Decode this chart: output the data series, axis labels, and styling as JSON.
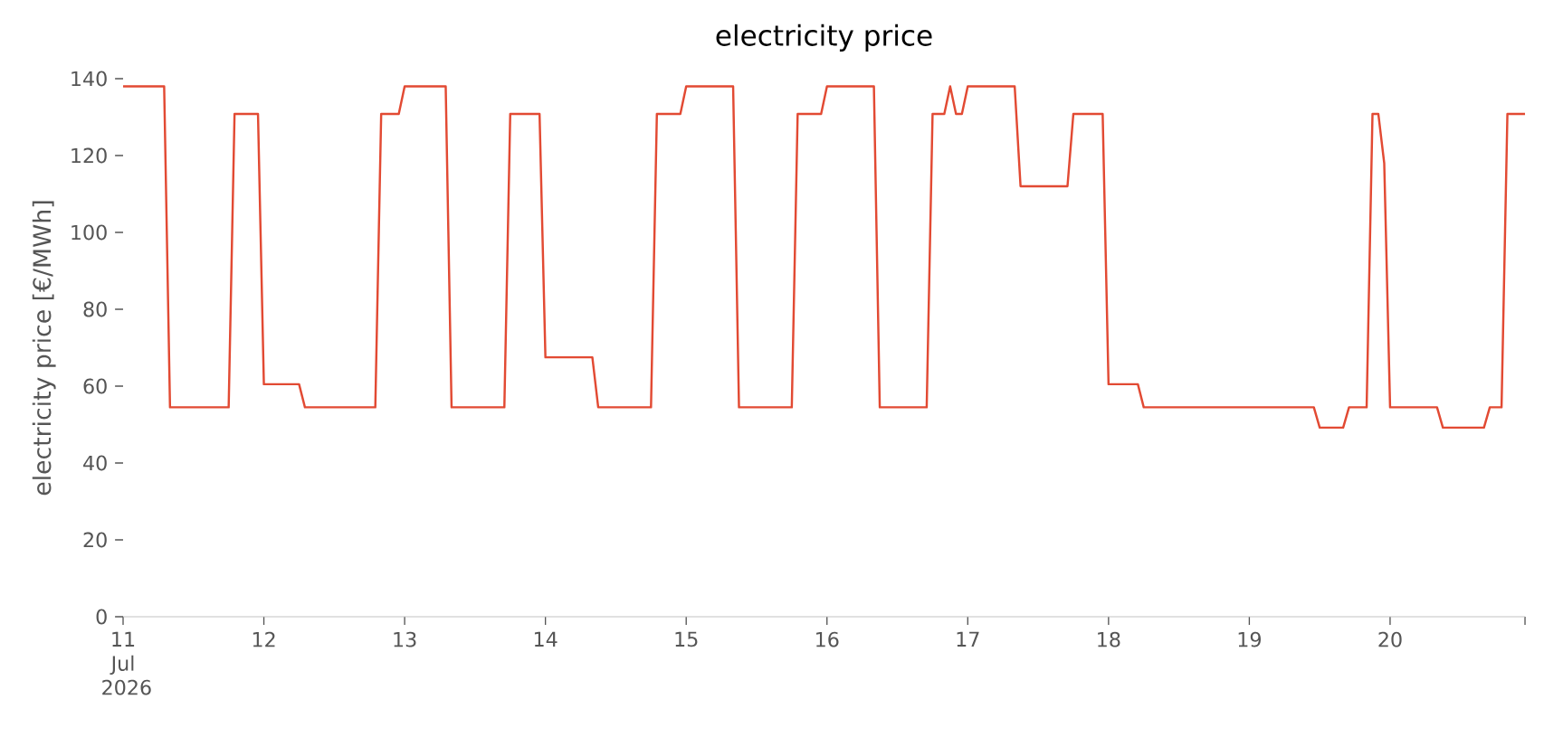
{
  "chart_data": {
    "type": "line",
    "title": "electricity price",
    "ylabel": "electricity price [€/MWh]",
    "x": [
      "2026-07-11T00:00",
      "2026-07-11T07:00",
      "2026-07-11T08:00",
      "2026-07-11T18:00",
      "2026-07-11T19:00",
      "2026-07-11T23:00",
      "2026-07-12T00:00",
      "2026-07-12T06:00",
      "2026-07-12T07:00",
      "2026-07-12T19:00",
      "2026-07-12T20:00",
      "2026-07-12T23:00",
      "2026-07-13T00:00",
      "2026-07-13T07:00",
      "2026-07-13T08:00",
      "2026-07-13T17:00",
      "2026-07-13T18:00",
      "2026-07-13T23:00",
      "2026-07-14T00:00",
      "2026-07-14T08:00",
      "2026-07-14T09:00",
      "2026-07-14T18:00",
      "2026-07-14T19:00",
      "2026-07-14T23:00",
      "2026-07-15T00:00",
      "2026-07-15T08:00",
      "2026-07-15T09:00",
      "2026-07-15T18:00",
      "2026-07-15T19:00",
      "2026-07-15T23:00",
      "2026-07-16T00:00",
      "2026-07-16T08:00",
      "2026-07-16T09:00",
      "2026-07-16T17:00",
      "2026-07-16T18:00",
      "2026-07-16T20:00",
      "2026-07-16T21:00",
      "2026-07-16T22:00",
      "2026-07-16T23:00",
      "2026-07-17T00:00",
      "2026-07-17T08:00",
      "2026-07-17T09:00",
      "2026-07-17T17:00",
      "2026-07-17T18:00",
      "2026-07-17T23:00",
      "2026-07-18T00:00",
      "2026-07-18T05:00",
      "2026-07-18T06:00",
      "2026-07-19T11:00",
      "2026-07-19T12:00",
      "2026-07-19T16:00",
      "2026-07-19T17:00",
      "2026-07-19T20:00",
      "2026-07-19T21:00",
      "2026-07-19T22:00",
      "2026-07-19T23:00",
      "2026-07-20T00:00",
      "2026-07-20T08:00",
      "2026-07-20T09:00",
      "2026-07-20T16:00",
      "2026-07-20T17:00",
      "2026-07-20T19:00",
      "2026-07-20T20:00",
      "2026-07-20T23:00"
    ],
    "series": [
      {
        "color": "#e24a33",
        "values": [
          138,
          138,
          54.5,
          54.5,
          130.8,
          130.8,
          60.5,
          60.5,
          54.5,
          54.5,
          130.8,
          130.8,
          138,
          138,
          54.5,
          54.5,
          130.8,
          130.8,
          67.5,
          67.5,
          54.5,
          54.5,
          130.8,
          130.8,
          138,
          138,
          54.5,
          54.5,
          130.8,
          130.8,
          138,
          138,
          54.5,
          54.5,
          130.8,
          130.8,
          138,
          130.8,
          130.8,
          138,
          138,
          112,
          112,
          130.8,
          130.8,
          60.5,
          60.5,
          54.5,
          54.5,
          49.2,
          49.2,
          54.5,
          54.5,
          130.8,
          130.8,
          118,
          54.5,
          54.5,
          49.2,
          49.2,
          54.5,
          54.5,
          130.8,
          130.8
        ]
      }
    ],
    "xlim": [
      "2026-07-11T00:00",
      "2026-07-20T23:00"
    ],
    "xticks": [
      {
        "value": "2026-07-11T00:00",
        "label": "11 Jul 2026"
      },
      {
        "value": "2026-07-12T00:00",
        "label": "12"
      },
      {
        "value": "2026-07-13T00:00",
        "label": "13"
      },
      {
        "value": "2026-07-14T00:00",
        "label": "14"
      },
      {
        "value": "2026-07-15T00:00",
        "label": "15"
      },
      {
        "value": "2026-07-16T00:00",
        "label": "16"
      },
      {
        "value": "2026-07-17T00:00",
        "label": "17"
      },
      {
        "value": "2026-07-18T00:00",
        "label": "18"
      },
      {
        "value": "2026-07-19T00:00",
        "label": "19"
      },
      {
        "value": "2026-07-20T00:00",
        "label": "20"
      },
      {
        "value": "2026-07-20T23:00",
        "label": null
      }
    ],
    "ylim": [
      0,
      140
    ],
    "yticks": [
      0,
      20,
      40,
      60,
      80,
      100,
      120,
      140
    ],
    "grid": false,
    "marker": "none",
    "line_style": "solid"
  }
}
